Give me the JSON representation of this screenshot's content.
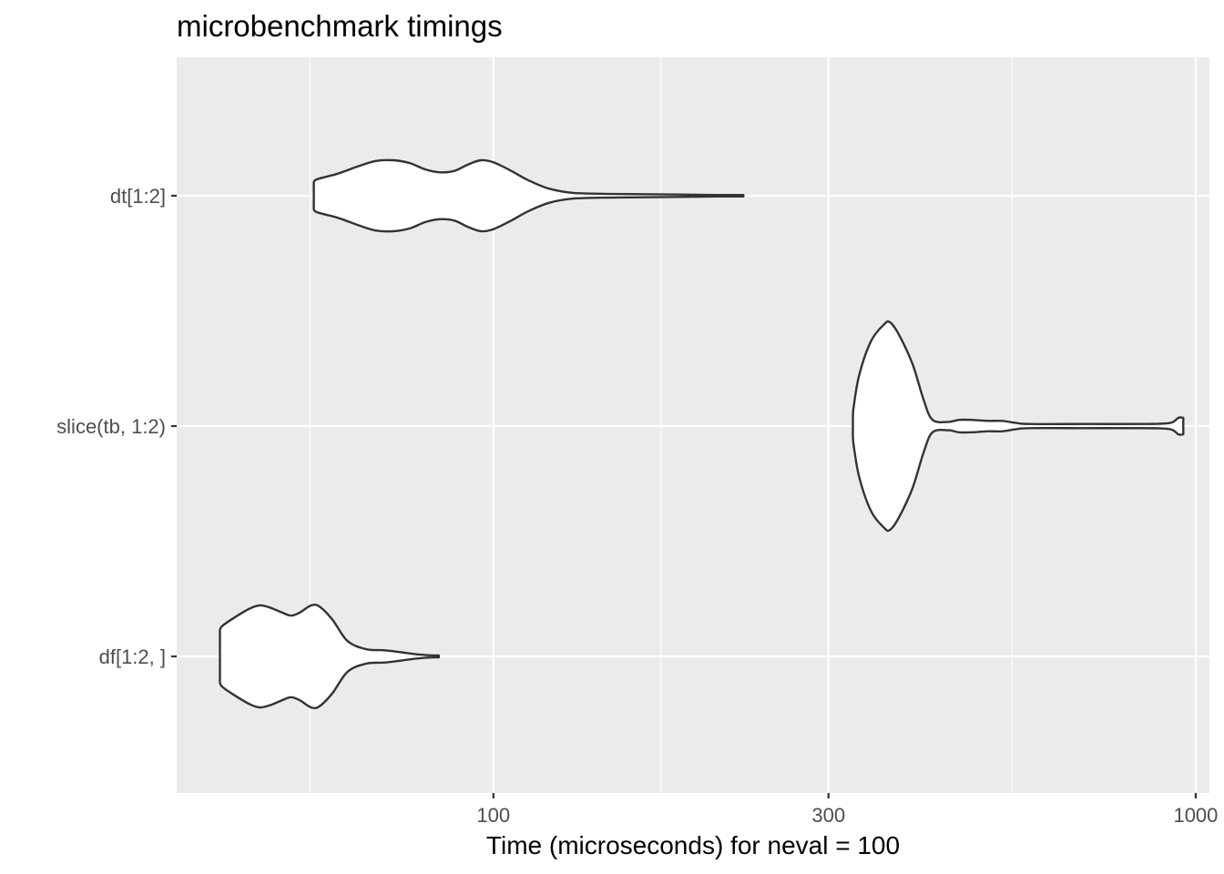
{
  "chart_data": {
    "type": "violin",
    "title": "microbenchmark timings",
    "xlabel": "Time (microseconds) for neval = 100",
    "ylabel": "",
    "x_scale": "log10",
    "xlim": [
      35.4,
      1046
    ],
    "x_ticks": [
      100,
      300,
      1000
    ],
    "x_tick_labels": [
      "100",
      "300",
      "1000"
    ],
    "x_minor_ticks": [
      54.8,
      173.2,
      547.7
    ],
    "grid": true,
    "categories": [
      "dt[1:2]",
      "slice(tb, 1:2)",
      "df[1:2, ]"
    ],
    "series": [
      {
        "name": "dt[1:2]",
        "min": 55.5,
        "max": 227,
        "profile": [
          [
            55.5,
            0.34
          ],
          [
            56,
            0.46
          ],
          [
            60,
            0.62
          ],
          [
            64,
            0.82
          ],
          [
            68,
            0.98
          ],
          [
            72,
            1.0
          ],
          [
            76,
            0.92
          ],
          [
            80,
            0.74
          ],
          [
            84,
            0.66
          ],
          [
            88,
            0.7
          ],
          [
            92,
            0.88
          ],
          [
            96,
            1.0
          ],
          [
            100,
            0.94
          ],
          [
            106,
            0.7
          ],
          [
            112,
            0.44
          ],
          [
            120,
            0.2
          ],
          [
            130,
            0.08
          ],
          [
            150,
            0.05
          ],
          [
            170,
            0.04
          ],
          [
            190,
            0.03
          ],
          [
            210,
            0.02
          ],
          [
            227,
            0.02
          ]
        ]
      },
      {
        "name": "slice(tb, 1:2)",
        "min": 325,
        "max": 960,
        "profile": [
          [
            325,
            0.1
          ],
          [
            326,
            0.2
          ],
          [
            332,
            0.5
          ],
          [
            345,
            0.82
          ],
          [
            360,
            0.98
          ],
          [
            367,
            1.0
          ],
          [
            378,
            0.88
          ],
          [
            395,
            0.6
          ],
          [
            410,
            0.25
          ],
          [
            422,
            0.06
          ],
          [
            445,
            0.04
          ],
          [
            460,
            0.06
          ],
          [
            480,
            0.06
          ],
          [
            505,
            0.05
          ],
          [
            530,
            0.05
          ],
          [
            555,
            0.03
          ],
          [
            580,
            0.02
          ],
          [
            700,
            0.02
          ],
          [
            850,
            0.02
          ],
          [
            920,
            0.03
          ],
          [
            945,
            0.08
          ],
          [
            960,
            0.08
          ]
        ]
      },
      {
        "name": "df[1:2, ]",
        "min": 40.8,
        "max": 83.6,
        "profile": [
          [
            40.8,
            0.44
          ],
          [
            41,
            0.58
          ],
          [
            43,
            0.78
          ],
          [
            45,
            0.94
          ],
          [
            46.5,
            1.0
          ],
          [
            48,
            0.96
          ],
          [
            50,
            0.86
          ],
          [
            51.5,
            0.8
          ],
          [
            53,
            0.86
          ],
          [
            55,
            1.0
          ],
          [
            56.5,
            0.98
          ],
          [
            59,
            0.72
          ],
          [
            62,
            0.3
          ],
          [
            66,
            0.14
          ],
          [
            70,
            0.12
          ],
          [
            74,
            0.08
          ],
          [
            78,
            0.04
          ],
          [
            82,
            0.02
          ],
          [
            83.6,
            0.02
          ]
        ]
      }
    ]
  }
}
